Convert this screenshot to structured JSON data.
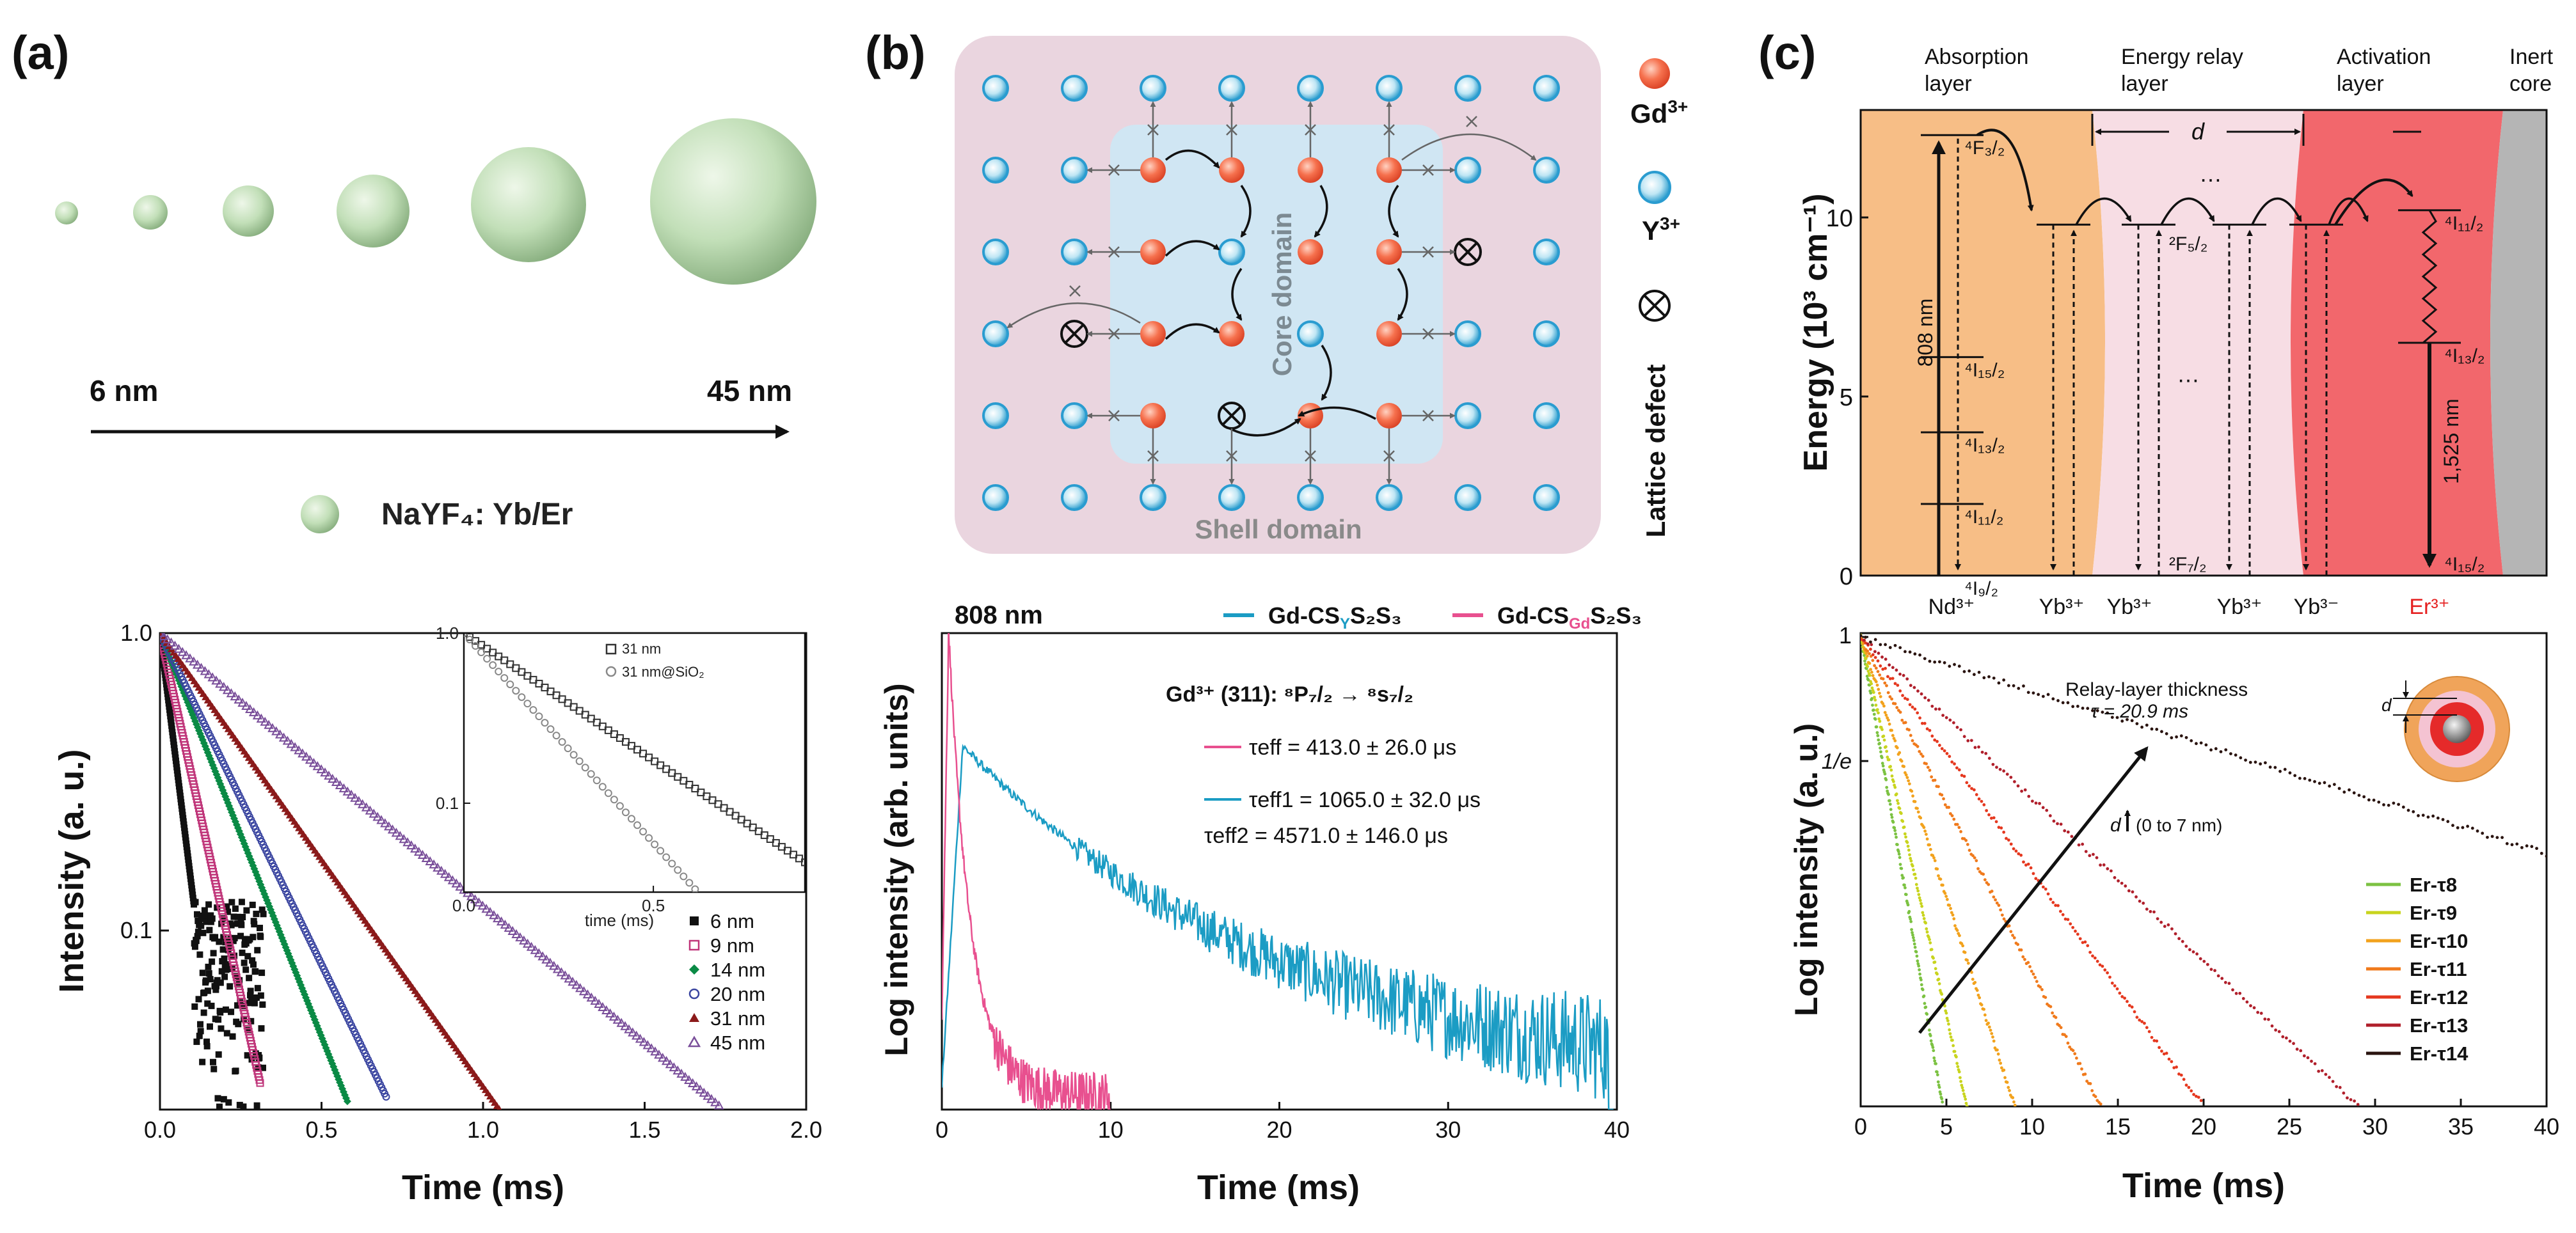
{
  "panels": {
    "a": {
      "label": "(a)"
    },
    "b": {
      "label": "(b)"
    },
    "c": {
      "label": "(c)"
    }
  },
  "a_top": {
    "size_start": "6 nm",
    "size_end": "45 nm",
    "legend": "NaYF₄: Yb/Er"
  },
  "b_top": {
    "core_domain": "Core domain",
    "shell_domain": "Shell domain",
    "legend_gd_ion": "Gd",
    "legend_gd_charge": "3+",
    "legend_y_ion": "Y",
    "legend_y_charge": "3+",
    "legend_defect": "Lattice defect",
    "defect_symbol": "⊗"
  },
  "c_top": {
    "layers": [
      "Absorption",
      "layer",
      "Energy relay",
      "layer",
      "Activation",
      "layer",
      "Inert",
      "core"
    ],
    "ylabel": "Energy (10³ cm⁻¹)",
    "yticks": [
      "0",
      "5",
      "10"
    ],
    "d_label": "d",
    "nd_levels": [
      "⁴F₃/₂",
      "⁴I₁₅/₂",
      "⁴I₁₃/₂",
      "⁴I₁₁/₂",
      "⁴I₉/₂"
    ],
    "yb_levels": [
      "²F₅/₂",
      "²F₇/₂"
    ],
    "er_levels": [
      "⁴I₁₁/₂",
      "⁴I₁₃/₂",
      "⁴I₁₅/₂"
    ],
    "wl_808": "808 nm",
    "wl_1525": "1,525 nm",
    "ions": [
      "Nd³⁺",
      "Yb³⁺",
      "Yb³⁺",
      "Yb³⁺",
      "Yb³⁻",
      "Er³⁺"
    ],
    "dots": "…"
  },
  "chart_data": [
    {
      "panel": "a",
      "type": "scatter",
      "title": "",
      "xlabel": "Time (ms)",
      "ylabel": "Intensity (a. u.)",
      "xlim": [
        0,
        2.0
      ],
      "ylim": [
        0.025,
        1.0
      ],
      "yscale": "log",
      "xticks": [
        "0.0",
        "0.5",
        "1.0",
        "1.5",
        "2.0"
      ],
      "yticks": [
        "0.1",
        "1.0"
      ],
      "series": [
        {
          "name": "6 nm",
          "tau": 0.05,
          "end": 0.32,
          "color": "#111111",
          "marker": "square"
        },
        {
          "name": "9 nm",
          "tau": 0.089,
          "end": 0.31,
          "color": "#c0367a",
          "marker": "open-square"
        },
        {
          "name": "14 nm",
          "tau": 0.16,
          "end": 0.58,
          "color": "#0a8a45",
          "marker": "diamond"
        },
        {
          "name": "20 nm",
          "tau": 0.195,
          "end": 0.7,
          "color": "#3a45a0",
          "marker": "open-circle"
        },
        {
          "name": "31 nm",
          "tau": 0.285,
          "end": 1.05,
          "color": "#8b1a1a",
          "marker": "triangle"
        },
        {
          "name": "45 nm",
          "tau": 0.473,
          "end": 1.73,
          "color": "#7a4f9a",
          "marker": "open-triangle"
        }
      ],
      "inset": {
        "xlabel": "time (ms)",
        "xlim": [
          0,
          0.9
        ],
        "ylim": [
          0.03,
          1.0
        ],
        "xticks": [
          "0.0",
          "0.5"
        ],
        "yticks": [
          "0.1",
          "1.0"
        ],
        "series": [
          {
            "name": "31 nm",
            "tau": 0.29,
            "color": "#333333"
          },
          {
            "name": "31 nm@SiO₂",
            "tau": 0.176,
            "color": "#888888"
          }
        ]
      }
    },
    {
      "panel": "b",
      "type": "line",
      "title": "808 nm",
      "xlabel": "Time (ms)",
      "ylabel": "Log intensity (arb. units)",
      "xlim": [
        0,
        40
      ],
      "xticks": [
        "0",
        "10",
        "20",
        "30",
        "40"
      ],
      "legend_pre": "Gd-CS",
      "legend_y_sub": "Y",
      "legend_gd_sub": "Gd",
      "legend_post": "S₂S₃",
      "transition": "Gd³⁺ (311): ⁸P₇/₂ → ⁸s₇/₂",
      "series": [
        {
          "name": "Gd-CS_YS₂S₃",
          "color": "#1b9cc4",
          "peak": 1.2,
          "end": 39.8,
          "label1": "τeff1 = 1065.0 ± 32.0 μs",
          "label2": "τeff2 = 4571.0 ± 146.0 μs"
        },
        {
          "name": "Gd-CS_GdS₂S₃",
          "color": "#e8508f",
          "peak": 0.4,
          "end": 10.0,
          "label1": "τeff = 413.0 ± 26.0 μs"
        }
      ]
    },
    {
      "panel": "c",
      "type": "line",
      "title": "",
      "xlabel": "Time (ms)",
      "ylabel": "Log intensity (a. u.)",
      "xlim": [
        0,
        40
      ],
      "xticks": [
        "0",
        "5",
        "10",
        "15",
        "20",
        "25",
        "30",
        "35",
        "40"
      ],
      "yticks": [
        "1",
        "1/e"
      ],
      "annotation_title": "Relay-layer thickness",
      "annotation_tau": "τ = 20.9 ms",
      "annotation_d": "d",
      "annotation_range": "(0 to 7 nm)",
      "series": [
        {
          "name": "Er-τ8",
          "end": 4.8,
          "color": "#7cc242"
        },
        {
          "name": "Er-τ9",
          "end": 6.2,
          "color": "#c8d41e"
        },
        {
          "name": "Er-τ10",
          "end": 9.0,
          "color": "#f2a21d"
        },
        {
          "name": "Er-τ11",
          "end": 14.0,
          "color": "#f07a1c"
        },
        {
          "name": "Er-τ12",
          "end": 20.0,
          "color": "#e5381f"
        },
        {
          "name": "Er-τ13",
          "end": 29.0,
          "color": "#b01f2b"
        },
        {
          "name": "Er-τ14",
          "end": 40.0,
          "color": "#2a1410"
        }
      ]
    }
  ]
}
